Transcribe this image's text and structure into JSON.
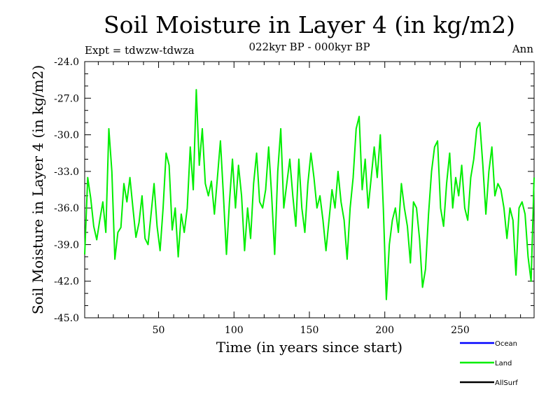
{
  "chart_data": {
    "type": "line",
    "title": "Soil Moisture in Layer 4 (in kg/m2)",
    "subtitle": "022kyr BP - 000kyr BP",
    "experiment_label": "Expt = tdwzw-tdwza",
    "season_label": "Ann",
    "xlabel": "Time (in years since start)",
    "ylabel": "Soil Moisture in Layer 4 (in kg/m2)",
    "xlim": [
      1,
      299
    ],
    "ylim": [
      -45.0,
      -24.0
    ],
    "x_ticks": [
      50,
      100,
      150,
      200,
      250
    ],
    "x_tick_labels": [
      "50",
      "100",
      "150",
      "200",
      "250"
    ],
    "y_ticks": [
      -45,
      -42,
      -39,
      -36,
      -33,
      -30,
      -27,
      -24
    ],
    "y_tick_labels": [
      "-45.0",
      "-42.0",
      "-39.0",
      "-36.0",
      "-33.0",
      "-30.0",
      "-27.0",
      "-24.0"
    ],
    "grid": false,
    "legend_position": "bottom-right",
    "legend": [
      {
        "name": "Ocean",
        "color": "#0000ff"
      },
      {
        "name": "Land",
        "color": "#00ee00"
      },
      {
        "name": "AllSurf",
        "color": "#000000"
      }
    ],
    "series": [
      {
        "name": "Land",
        "color": "#00ee00",
        "x": [
          1,
          3,
          5,
          7,
          9,
          11,
          13,
          15,
          17,
          19,
          21,
          23,
          25,
          27,
          29,
          31,
          33,
          35,
          37,
          39,
          41,
          43,
          45,
          47,
          49,
          51,
          53,
          55,
          57,
          59,
          61,
          63,
          65,
          67,
          69,
          71,
          73,
          75,
          77,
          79,
          81,
          83,
          85,
          87,
          89,
          91,
          93,
          95,
          97,
          99,
          101,
          103,
          105,
          107,
          109,
          111,
          113,
          115,
          117,
          119,
          121,
          123,
          125,
          127,
          129,
          131,
          133,
          135,
          137,
          139,
          141,
          143,
          145,
          147,
          149,
          151,
          153,
          155,
          157,
          159,
          161,
          163,
          165,
          167,
          169,
          171,
          173,
          175,
          177,
          179,
          181,
          183,
          185,
          187,
          189,
          191,
          193,
          195,
          197,
          199,
          201,
          203,
          205,
          207,
          209,
          211,
          213,
          215,
          217,
          219,
          221,
          223,
          225,
          227,
          229,
          231,
          233,
          235,
          237,
          239,
          241,
          243,
          245,
          247,
          249,
          251,
          253,
          255,
          257,
          259,
          261,
          263,
          265,
          267,
          269,
          271,
          273,
          275,
          277,
          279,
          281,
          283,
          285,
          287,
          289,
          291,
          293,
          295,
          297,
          299
        ],
        "y": [
          -39.8,
          -33.5,
          -35.2,
          -37.5,
          -38.6,
          -37.0,
          -35.5,
          -38.0,
          -29.5,
          -33.0,
          -40.2,
          -38.0,
          -37.6,
          -34.0,
          -35.5,
          -33.5,
          -36.0,
          -38.4,
          -37.2,
          -35.0,
          -38.5,
          -39.0,
          -36.5,
          -34.0,
          -37.5,
          -39.5,
          -36.0,
          -31.5,
          -32.5,
          -37.8,
          -36.0,
          -40.0,
          -36.5,
          -38.0,
          -36.0,
          -31.0,
          -34.5,
          -26.3,
          -32.5,
          -29.5,
          -34.0,
          -35.0,
          -33.8,
          -36.5,
          -33.5,
          -30.5,
          -35.0,
          -39.8,
          -35.5,
          -32.0,
          -36.0,
          -32.5,
          -35.0,
          -39.5,
          -36.0,
          -38.5,
          -34.0,
          -31.5,
          -35.5,
          -36.0,
          -34.5,
          -31.0,
          -35.0,
          -39.8,
          -33.0,
          -29.5,
          -36.0,
          -34.0,
          -32.0,
          -35.0,
          -37.5,
          -32.0,
          -36.0,
          -38.0,
          -34.0,
          -31.5,
          -33.5,
          -36.0,
          -35.0,
          -37.0,
          -39.5,
          -37.0,
          -34.5,
          -36.0,
          -33.0,
          -35.5,
          -37.0,
          -40.2,
          -36.0,
          -33.5,
          -29.5,
          -28.5,
          -34.5,
          -32.0,
          -36.0,
          -33.5,
          -31.0,
          -33.5,
          -30.0,
          -36.0,
          -43.5,
          -39.0,
          -37.0,
          -36.0,
          -38.0,
          -34.0,
          -36.0,
          -37.5,
          -40.5,
          -35.5,
          -36.0,
          -38.5,
          -42.5,
          -41.0,
          -36.5,
          -33.0,
          -31.0,
          -30.5,
          -36.0,
          -37.5,
          -34.0,
          -31.5,
          -36.0,
          -33.5,
          -35.0,
          -32.5,
          -36.0,
          -37.0,
          -33.5,
          -32.0,
          -29.5,
          -29.0,
          -32.5,
          -36.5,
          -33.0,
          -31.0,
          -35.0,
          -34.0,
          -34.5,
          -36.0,
          -38.5,
          -36.0,
          -37.0,
          -41.5,
          -36.0,
          -35.5,
          -36.5,
          -40.0,
          -42.0,
          -33.5
        ]
      }
    ]
  }
}
